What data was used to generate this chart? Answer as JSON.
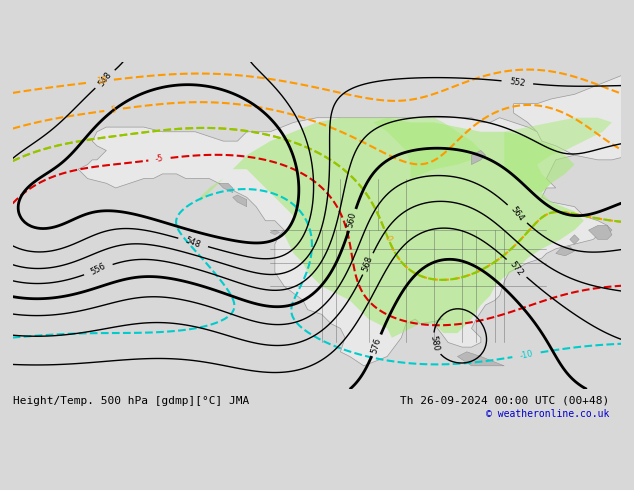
{
  "title_left": "Height/Temp. 500 hPa [gdmp][°C] JMA",
  "title_right": "Th 26-09-2024 00:00 UTC (00+48)",
  "copyright": "© weatheronline.co.uk",
  "bg_color": "#d8d8d8",
  "land_color": "#e8e8e8",
  "green_color": "#a8e878",
  "gray_land_color": "#b8b8b8",
  "contour_color_black": "#000000",
  "contour_color_red": "#dd0000",
  "contour_color_orange": "#ff9900",
  "contour_color_cyan": "#00cccc",
  "contour_color_green": "#88cc00",
  "contour_linewidth_major": 2.0,
  "contour_linewidth_minor": 1.0,
  "font_size_labels": 7,
  "font_size_title": 8,
  "font_size_copyright": 7,
  "xlim": [
    -180,
    -50
  ],
  "ylim": [
    15,
    85
  ]
}
